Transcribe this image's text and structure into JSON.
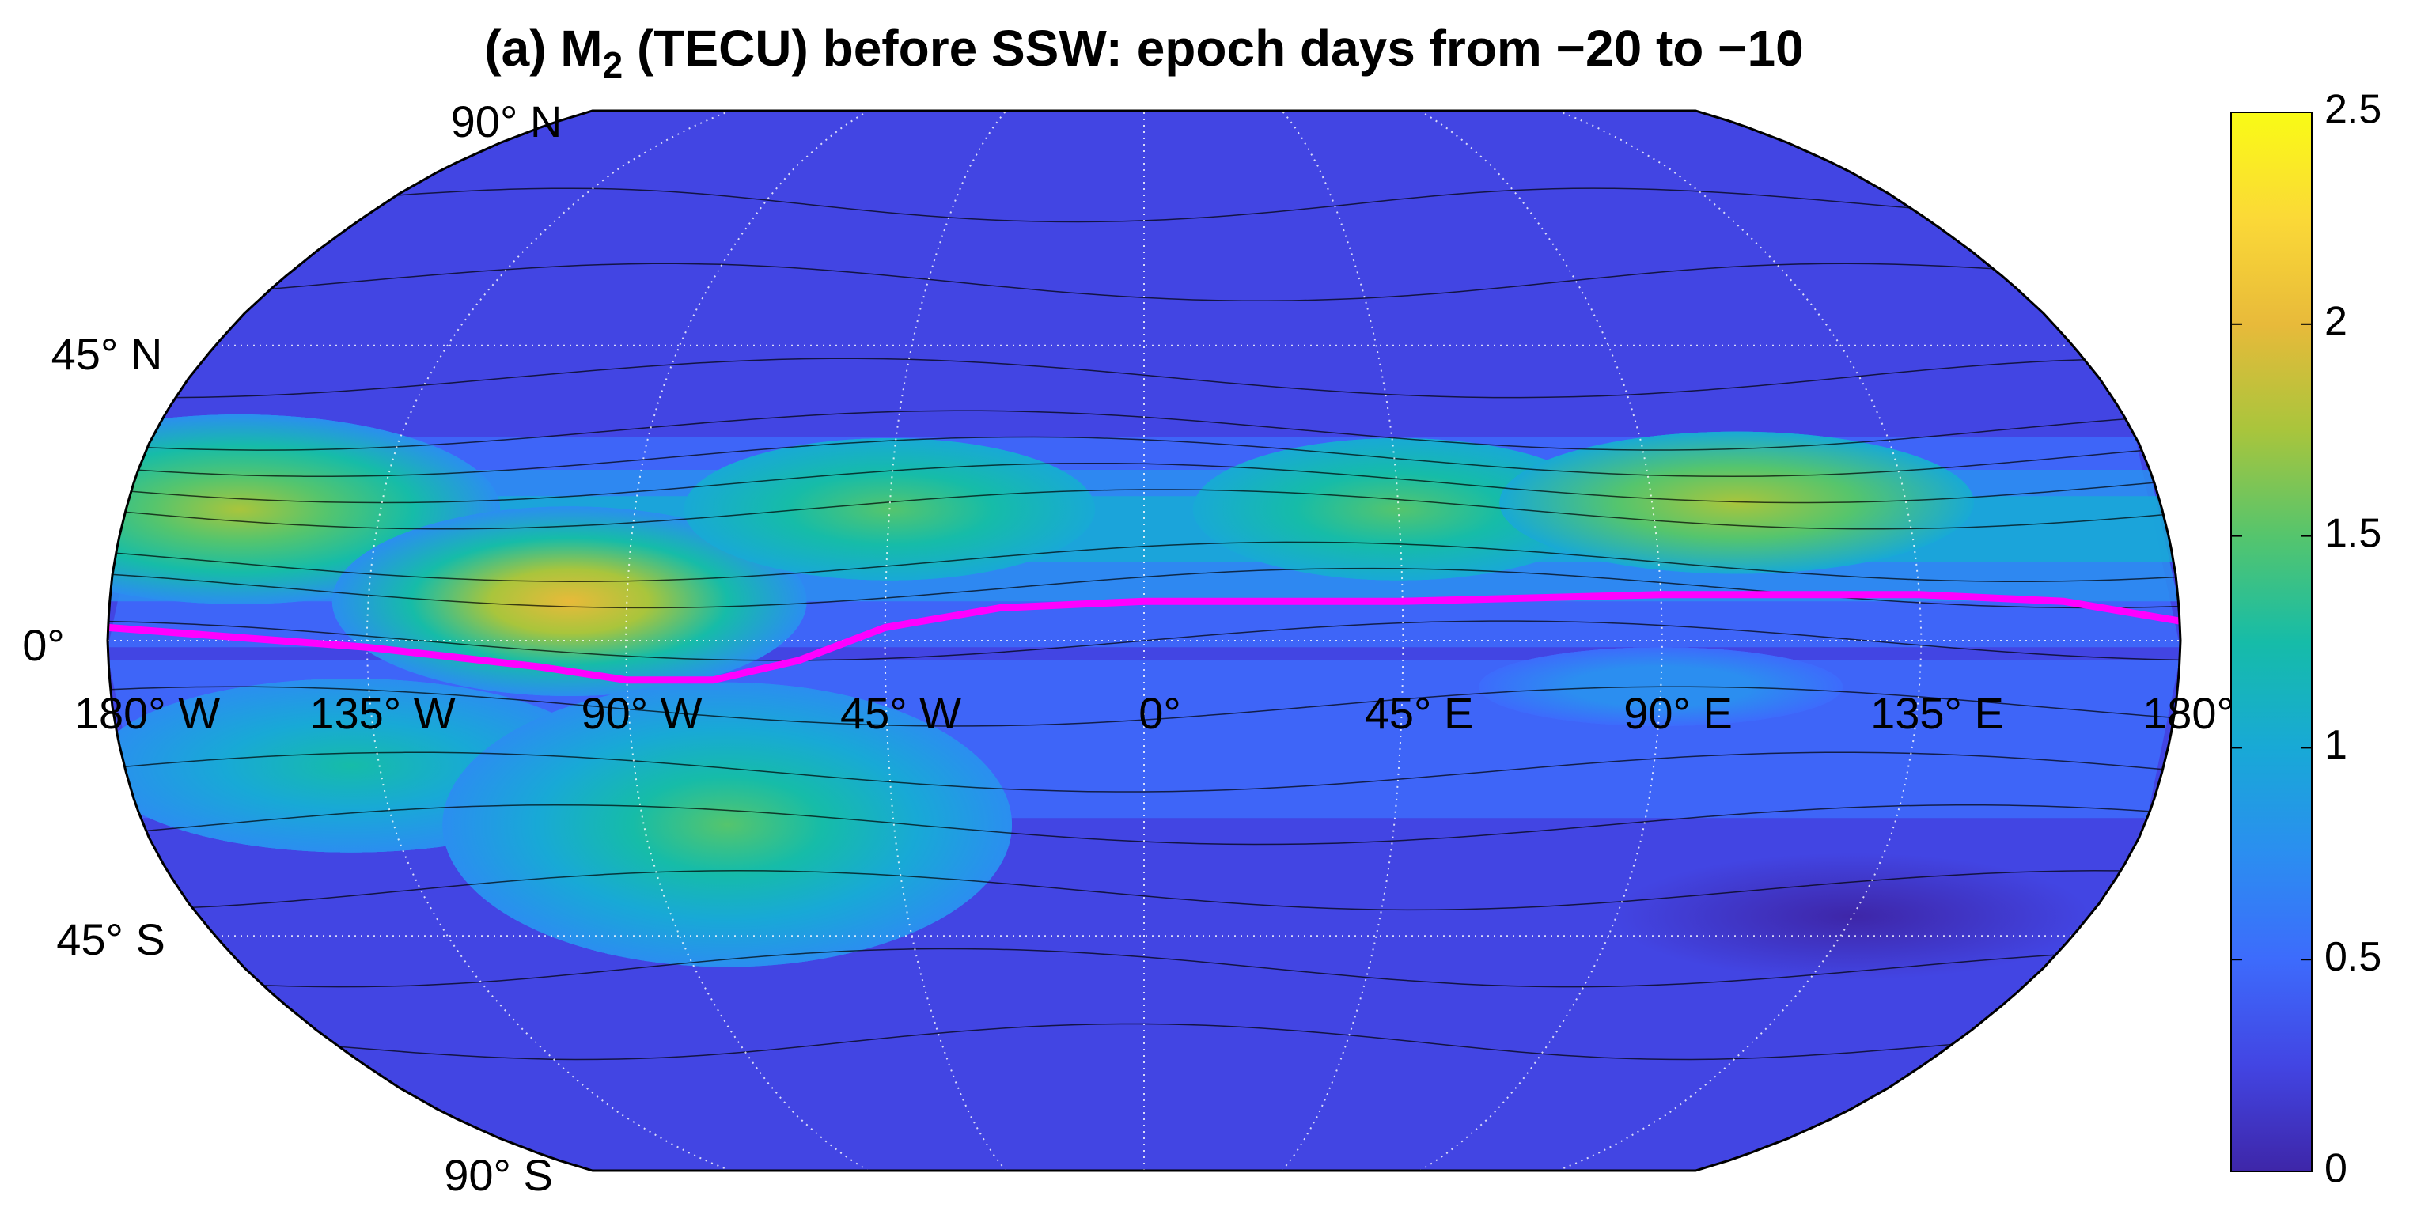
{
  "chart_data": {
    "type": "map",
    "title": {
      "prefix": "(a) M",
      "subscript": "2",
      "rest": " (TECU) before SSW: epoch days from −20 to −10"
    },
    "lat_labels": [
      "90° N",
      "45° N",
      "0°",
      "45° S",
      "90° S"
    ],
    "lon_labels": [
      "180° W",
      "135° W",
      "90° W",
      "45° W",
      "0°",
      "45° E",
      "90° E",
      "135° E",
      "180°"
    ],
    "colorbar": {
      "ylim": [
        0,
        2.5
      ],
      "yticks": [
        0,
        0.5,
        1,
        1.5,
        2,
        2.5
      ]
    },
    "colormap": [
      "#3e26a8",
      "#4245e3",
      "#3d6bfc",
      "#2b8ef0",
      "#18a9d6",
      "#16bca8",
      "#55c56d",
      "#a9c53c",
      "#e8ba3a",
      "#fbd937",
      "#f9fb15"
    ],
    "equator_color": "#ff00ff"
  }
}
